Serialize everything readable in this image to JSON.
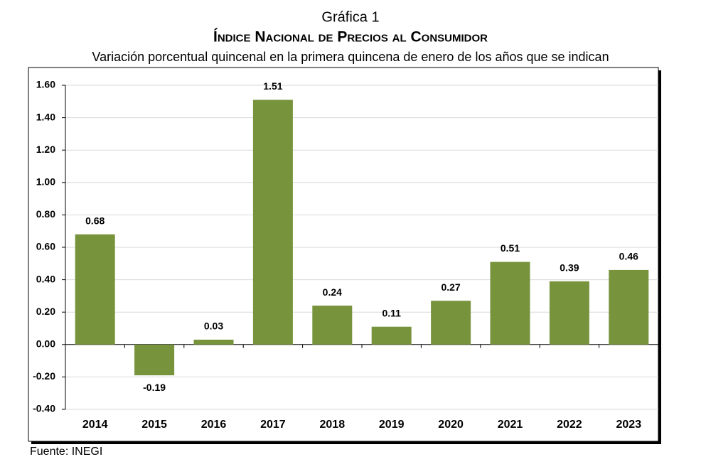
{
  "chart_data": {
    "type": "bar",
    "title": "Gráfica 1",
    "subtitle": "Índice Nacional de Precios al Consumidor",
    "description": "Variación porcentual quincenal en la primera quincena de enero de los años que se indican",
    "source": "Fuente: INEGI",
    "categories": [
      "2014",
      "2015",
      "2016",
      "2017",
      "2018",
      "2019",
      "2020",
      "2021",
      "2022",
      "2023"
    ],
    "values": [
      0.68,
      -0.19,
      0.03,
      1.51,
      0.24,
      0.11,
      0.27,
      0.51,
      0.39,
      0.46
    ],
    "color": "#77933c",
    "ylim": [
      -0.4,
      1.6
    ],
    "yticks": [
      {
        "value": -0.4,
        "label": "-0.40"
      },
      {
        "value": -0.2,
        "label": "-0.20"
      },
      {
        "value": 0,
        "label": "0.00"
      },
      {
        "value": 0.2,
        "label": "0.20"
      },
      {
        "value": 0.4,
        "label": "0.40"
      },
      {
        "value": 0.6,
        "label": "0.60"
      },
      {
        "value": 0.8,
        "label": "0.80"
      },
      {
        "value": 1.0,
        "label": "1.00"
      },
      {
        "value": 1.2,
        "label": "1.20"
      },
      {
        "value": 1.4,
        "label": "1.40"
      },
      {
        "value": 1.6,
        "label": "1.60"
      }
    ],
    "grid": true
  }
}
